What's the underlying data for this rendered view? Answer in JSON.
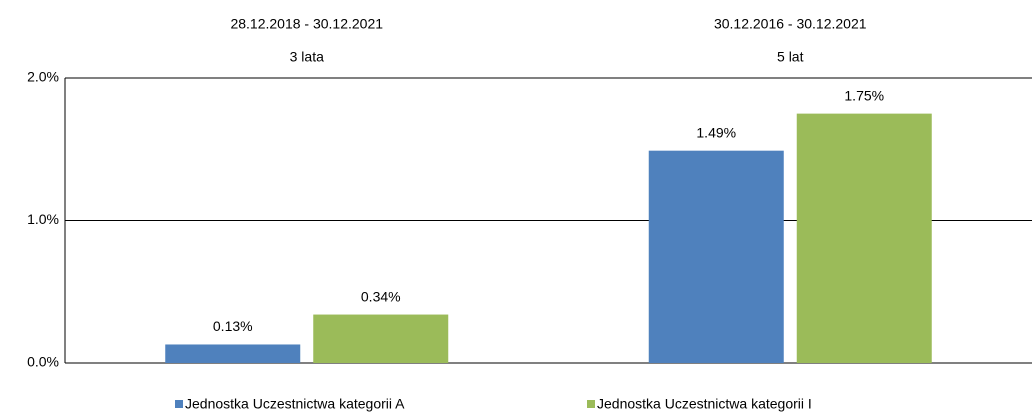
{
  "chart_data": {
    "type": "bar",
    "categories": [
      "28.12.2018 - 30.12.2021",
      "30.12.2016 - 30.12.2021"
    ],
    "category_sublabels": [
      "3 lata",
      "5 lat"
    ],
    "series": [
      {
        "name": "Jednostka Uczestnictwa kategorii A",
        "color": "#4f81bd",
        "values": [
          0.13,
          1.49
        ],
        "value_labels": [
          "0.13%",
          "1.49%"
        ]
      },
      {
        "name": "Jednostka Uczestnictwa kategorii I",
        "color": "#9bbb59",
        "values": [
          0.34,
          1.75
        ],
        "value_labels": [
          "0.34%",
          "1.75%"
        ]
      }
    ],
    "ylim": [
      0,
      2
    ],
    "yticks": [
      {
        "value": 0,
        "label": "0.0%"
      },
      {
        "value": 1,
        "label": "1.0%"
      },
      {
        "value": 2,
        "label": "2.0%"
      }
    ],
    "grid": true
  }
}
